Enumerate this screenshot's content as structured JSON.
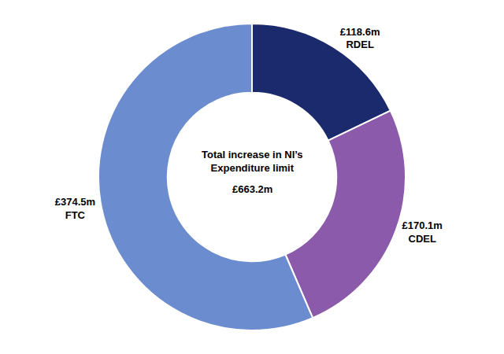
{
  "chart_data": {
    "type": "donut",
    "categories": [
      "RDEL",
      "CDEL",
      "FTC"
    ],
    "values": [
      118.6,
      170.1,
      374.5
    ],
    "value_labels": [
      "£118.6m",
      "£170.1m",
      "£374.5m"
    ],
    "data_labels": true,
    "colors": [
      "#1a2a6c",
      "#8b5aaa",
      "#6b8cce"
    ],
    "annotations": [
      "Total increase in NI’s\nExpenditure limit",
      "£663.2m"
    ]
  }
}
